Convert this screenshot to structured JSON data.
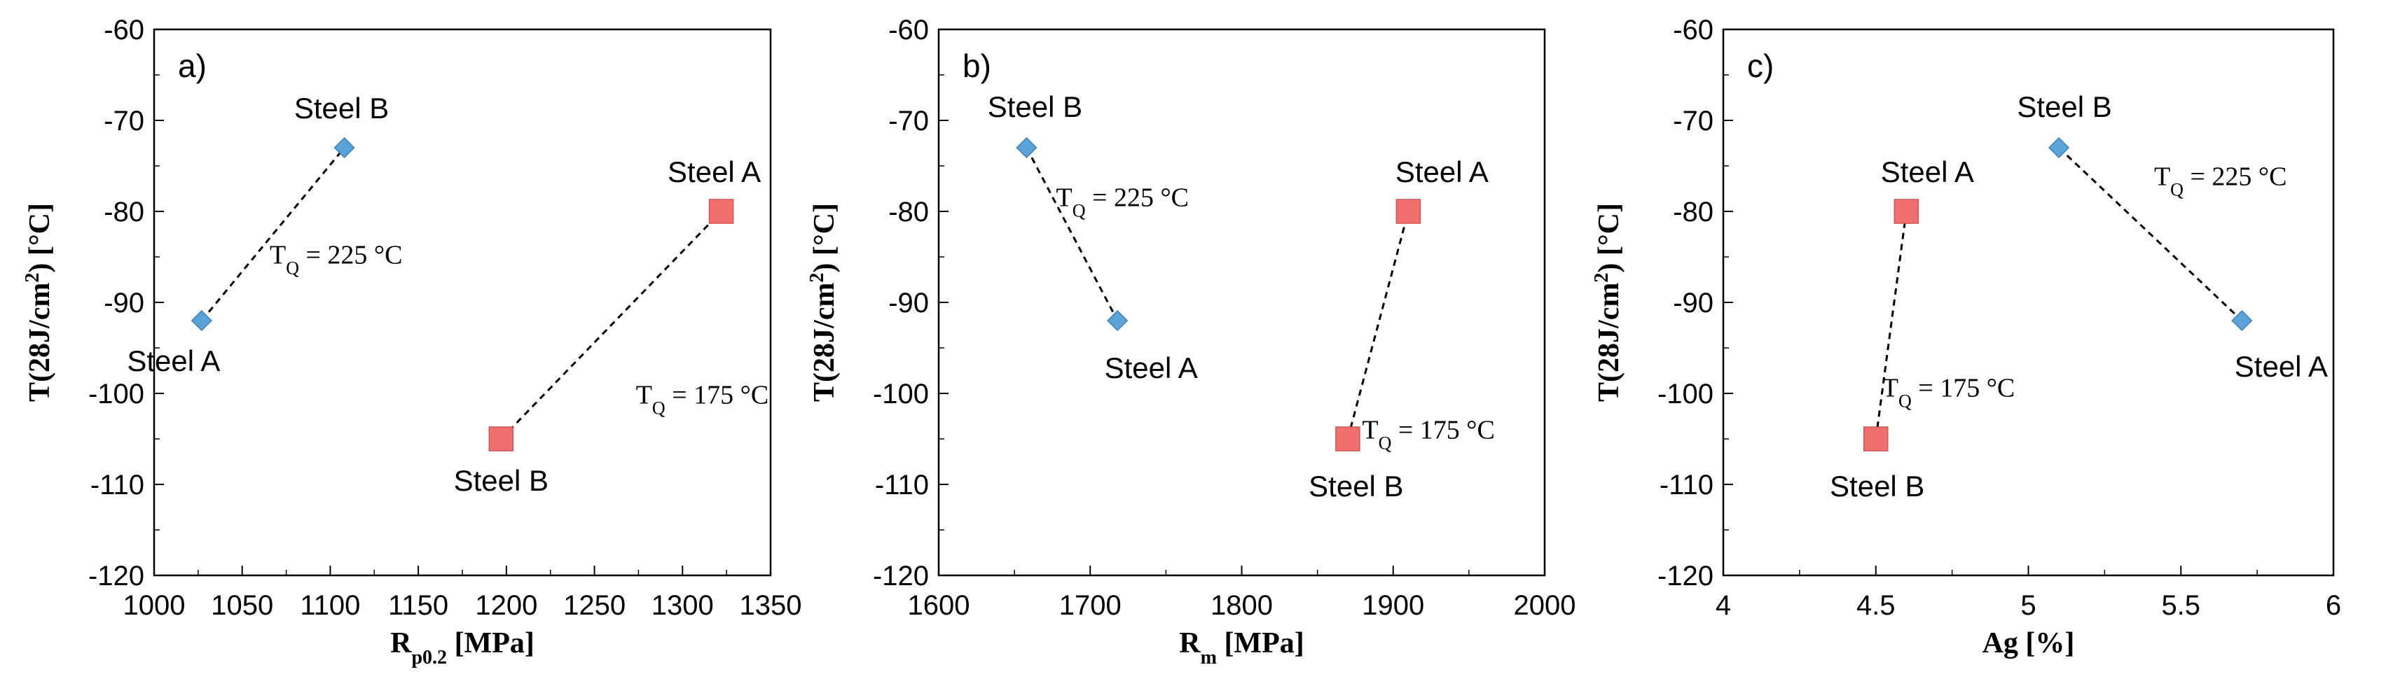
{
  "chart_data": [
    {
      "type": "scatter",
      "panel_label": "a)",
      "xlabel": {
        "main": "R",
        "sub": "p0.2",
        "rest": " [MPa]"
      },
      "ylabel": {
        "prefix": "T(28J/cm",
        "sup": "2",
        "suffix": ") [°C]"
      },
      "xlim": [
        1000,
        1350
      ],
      "ylim": [
        -120,
        -60
      ],
      "xticks": [
        1000,
        1050,
        1100,
        1150,
        1200,
        1250,
        1300,
        1350
      ],
      "yticks": [
        -120,
        -110,
        -100,
        -90,
        -80,
        -70,
        -60
      ],
      "series": [
        {
          "name": "TQ = 225 °C",
          "marker": "diamond",
          "color": "#5BA3D9",
          "points": [
            {
              "x": 1027,
              "y": -92,
              "label": "Steel A"
            },
            {
              "x": 1108,
              "y": -73,
              "label": "Steel B"
            }
          ],
          "annotation": {
            "T": "T",
            "sub": "Q",
            "rest": " = 225 °C"
          }
        },
        {
          "name": "TQ = 175 °C",
          "marker": "square",
          "color": "#F07070",
          "points": [
            {
              "x": 1197,
              "y": -105,
              "label": "Steel B"
            },
            {
              "x": 1322,
              "y": -80,
              "label": "Steel A"
            }
          ],
          "annotation": {
            "T": "T",
            "sub": "Q",
            "rest": " = 175 °C"
          }
        }
      ]
    },
    {
      "type": "scatter",
      "panel_label": "b)",
      "xlabel": {
        "main": "R",
        "sub": "m",
        "rest": " [MPa]"
      },
      "ylabel": {
        "prefix": "T(28J/cm",
        "sup": "2",
        "suffix": ") [°C]"
      },
      "xlim": [
        1600,
        2000
      ],
      "ylim": [
        -120,
        -60
      ],
      "xticks": [
        1600,
        1700,
        1800,
        1900,
        2000
      ],
      "yticks": [
        -120,
        -110,
        -100,
        -90,
        -80,
        -70,
        -60
      ],
      "series": [
        {
          "name": "TQ = 225 °C",
          "marker": "diamond",
          "color": "#5BA3D9",
          "points": [
            {
              "x": 1658,
              "y": -73,
              "label": "Steel B"
            },
            {
              "x": 1718,
              "y": -92,
              "label": "Steel A"
            }
          ],
          "annotation": {
            "T": "T",
            "sub": "Q",
            "rest": " = 225 °C"
          }
        },
        {
          "name": "TQ = 175 °C",
          "marker": "square",
          "color": "#F07070",
          "points": [
            {
              "x": 1870,
              "y": -105,
              "label": "Steel B"
            },
            {
              "x": 1910,
              "y": -80,
              "label": "Steel A"
            }
          ],
          "annotation": {
            "T": "T",
            "sub": "Q",
            "rest": " = 175 °C"
          }
        }
      ]
    },
    {
      "type": "scatter",
      "panel_label": "c)",
      "xlabel": {
        "main": "Ag [%]",
        "sub": "",
        "rest": ""
      },
      "ylabel": {
        "prefix": "T(28J/cm",
        "sup": "2",
        "suffix": ") [°C]"
      },
      "xlim": [
        4,
        6
      ],
      "ylim": [
        -120,
        -60
      ],
      "xticks": [
        4,
        4.5,
        5,
        5.5,
        6
      ],
      "yticks": [
        -120,
        -110,
        -100,
        -90,
        -80,
        -70,
        -60
      ],
      "series": [
        {
          "name": "TQ = 225 °C",
          "marker": "diamond",
          "color": "#5BA3D9",
          "points": [
            {
              "x": 5.1,
              "y": -73,
              "label": "Steel B"
            },
            {
              "x": 5.7,
              "y": -92,
              "label": "Steel A"
            }
          ],
          "annotation": {
            "T": "T",
            "sub": "Q",
            "rest": " = 225 °C"
          }
        },
        {
          "name": "TQ = 175 °C",
          "marker": "square",
          "color": "#F07070",
          "points": [
            {
              "x": 4.5,
              "y": -105,
              "label": "Steel B"
            },
            {
              "x": 4.6,
              "y": -80,
              "label": "Steel A"
            }
          ],
          "annotation": {
            "T": "T",
            "sub": "Q",
            "rest": " = 175 °C"
          }
        }
      ]
    }
  ]
}
